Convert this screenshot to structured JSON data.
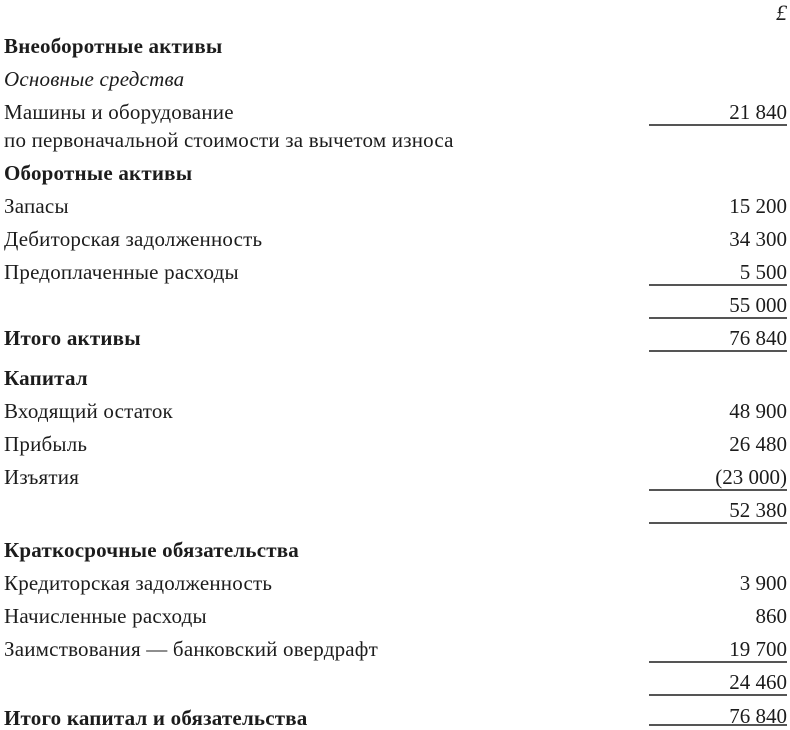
{
  "document": {
    "type_note": "balance-sheet",
    "currency_header": "£",
    "rows": [
      {
        "label": "",
        "value": "£"
      },
      {
        "label": "Внеоборотные активы",
        "value": ""
      },
      {
        "label": "Основные средства",
        "value": ""
      },
      {
        "label": "Машины и оборудование",
        "value": "21 840"
      },
      {
        "label": "по первоначальной стоимости за вычетом износа",
        "value": ""
      },
      {
        "label": "Оборотные активы",
        "value": ""
      },
      {
        "label": "Запасы",
        "value": "15 200"
      },
      {
        "label": "Дебиторская задолженность",
        "value": "34 300"
      },
      {
        "label": "Предоплаченные расходы",
        "value": "5 500"
      },
      {
        "label": "",
        "value": "55 000"
      },
      {
        "label": "Итого активы",
        "value": "76 840"
      },
      {
        "label": "Капитал",
        "value": ""
      },
      {
        "label": "Входящий остаток",
        "value": "48 900"
      },
      {
        "label": "Прибыль",
        "value": "26 480"
      },
      {
        "label": "Изъятия",
        "value": "(23 000)"
      },
      {
        "label": "",
        "value": "52 380"
      },
      {
        "label": "Краткосрочные обязательства",
        "value": ""
      },
      {
        "label": "Кредиторская задолженность",
        "value": "3 900"
      },
      {
        "label": "Начисленные расходы",
        "value": "860"
      },
      {
        "label": "Заимствования — банковский овердрафт",
        "value": "19 700"
      },
      {
        "label": "",
        "value": "24 460"
      },
      {
        "label": "Итого капитал и обязательства",
        "value": "76 840"
      }
    ],
    "colors": {
      "text": "#1c1c1c",
      "rule": "#555555",
      "background": "#ffffff"
    }
  }
}
